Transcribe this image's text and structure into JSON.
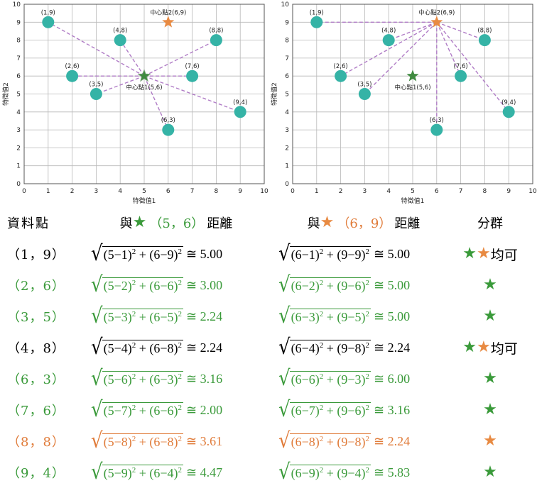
{
  "chart_data": [
    {
      "type": "scatter",
      "xlabel": "特徵值1",
      "ylabel": "特徵值2",
      "xlim": [
        0,
        10
      ],
      "ylim": [
        0,
        10
      ],
      "xticks": [
        "0",
        "1",
        "2",
        "3",
        "4",
        "5",
        "6",
        "7",
        "8",
        "9",
        "10"
      ],
      "yticks": [
        "0",
        "1",
        "2",
        "3",
        "4",
        "5",
        "6",
        "7",
        "8",
        "9",
        "10"
      ],
      "grid": true,
      "points": [
        {
          "x": 1,
          "y": 9,
          "label": "(1,9)"
        },
        {
          "x": 2,
          "y": 6,
          "label": "(2,6)"
        },
        {
          "x": 3,
          "y": 5,
          "label": "(3,5)"
        },
        {
          "x": 4,
          "y": 8,
          "label": "(4,8)"
        },
        {
          "x": 6,
          "y": 3,
          "label": "(6,3)"
        },
        {
          "x": 7,
          "y": 6,
          "label": "(7,6)"
        },
        {
          "x": 8,
          "y": 8,
          "label": "(8,8)"
        },
        {
          "x": 9,
          "y": 4,
          "label": "(9,4)"
        }
      ],
      "centers": [
        {
          "x": 5,
          "y": 6,
          "label": "中心點1(5,6)",
          "color": "#3f8a3f"
        },
        {
          "x": 6,
          "y": 9,
          "label": "中心點2(6,9)",
          "color": "#e88a42"
        }
      ],
      "active_center": 0
    },
    {
      "type": "scatter",
      "xlabel": "特徵值1",
      "ylabel": "特徵值2",
      "xlim": [
        0,
        10
      ],
      "ylim": [
        0,
        10
      ],
      "xticks": [
        "0",
        "1",
        "2",
        "3",
        "4",
        "5",
        "6",
        "7",
        "8",
        "9",
        "10"
      ],
      "yticks": [
        "0",
        "1",
        "2",
        "3",
        "4",
        "5",
        "6",
        "7",
        "8",
        "9",
        "10"
      ],
      "grid": true,
      "points": [
        {
          "x": 1,
          "y": 9,
          "label": "(1,9)"
        },
        {
          "x": 2,
          "y": 6,
          "label": "(2,6)"
        },
        {
          "x": 3,
          "y": 5,
          "label": "(3,5)"
        },
        {
          "x": 4,
          "y": 8,
          "label": "(4,8)"
        },
        {
          "x": 6,
          "y": 3,
          "label": "(6,3)"
        },
        {
          "x": 7,
          "y": 6,
          "label": "(7,6)"
        },
        {
          "x": 8,
          "y": 8,
          "label": "(8,8)"
        },
        {
          "x": 9,
          "y": 4,
          "label": "(9,4)"
        }
      ],
      "centers": [
        {
          "x": 5,
          "y": 6,
          "label": "中心點1(5,6)",
          "color": "#3f8a3f"
        },
        {
          "x": 6,
          "y": 9,
          "label": "中心點2(6,9)",
          "color": "#e88a42"
        }
      ],
      "active_center": 1
    }
  ],
  "colors": {
    "point": "#35b3a6",
    "dash": "#b07cc6",
    "green": "#3a9a3a",
    "orange": "#e07b39",
    "grid": "#b8b8b8"
  },
  "table": {
    "header": {
      "point": "資料點",
      "dist1_prefix": "與",
      "dist1_coord": "（5，6）",
      "dist1_suffix": "距離",
      "dist2_prefix": "與",
      "dist2_coord": "（6，9）",
      "dist2_suffix": "距離",
      "group": "分群"
    },
    "rows": [
      {
        "point": "（1，9）",
        "color": "black",
        "f1": "(5−1)² + (6−9)²",
        "r1": "≅ 5.00",
        "f2": "(6−1)² + (9−9)²",
        "r2": "≅ 5.00",
        "group_stars": [
          "green",
          "orange"
        ],
        "group_text": "均可"
      },
      {
        "point": "（2，6）",
        "color": "green",
        "f1": "(5−2)² + (6−6)²",
        "r1": "≅ 3.00",
        "f2": "(6−2)² + (9−6)²",
        "r2": "≅ 5.00",
        "group_stars": [
          "green"
        ],
        "group_text": ""
      },
      {
        "point": "（3，5）",
        "color": "green",
        "f1": "(5−3)² + (6−5)²",
        "r1": "≅ 2.24",
        "f2": "(6−3)² + (9−5)²",
        "r2": "≅ 5.00",
        "group_stars": [
          "green"
        ],
        "group_text": ""
      },
      {
        "point": "（4，8）",
        "color": "black",
        "f1": "(5−4)² + (6−8)²",
        "r1": "≅ 2.24",
        "f2": "(6−4)² + (9−8)²",
        "r2": "≅ 2.24",
        "group_stars": [
          "green",
          "orange"
        ],
        "group_text": "均可"
      },
      {
        "point": "（6，3）",
        "color": "green",
        "f1": "(5−6)² + (6−3)²",
        "r1": "≅ 3.16",
        "f2": "(6−6)² + (9−3)²",
        "r2": "≅ 6.00",
        "group_stars": [
          "green"
        ],
        "group_text": ""
      },
      {
        "point": "（7，6）",
        "color": "green",
        "f1": "(5−7)² + (6−6)²",
        "r1": "≅ 2.00",
        "f2": "(6−7)² + (9−6)²",
        "r2": "≅ 3.16",
        "group_stars": [
          "green"
        ],
        "group_text": ""
      },
      {
        "point": "（8，8）",
        "color": "orange",
        "f1": "(5−8)² + (6−8)²",
        "r1": "≅ 3.61",
        "f2": "(6−8)² + (9−8)²",
        "r2": "≅ 2.24",
        "group_stars": [
          "orange"
        ],
        "group_text": ""
      },
      {
        "point": "（9，4）",
        "color": "green",
        "f1": "(5−9)² + (6−4)²",
        "r1": "≅ 4.47",
        "f2": "(6−9)² + (9−4)²",
        "r2": "≅ 5.83",
        "group_stars": [
          "green"
        ],
        "group_text": ""
      }
    ]
  }
}
